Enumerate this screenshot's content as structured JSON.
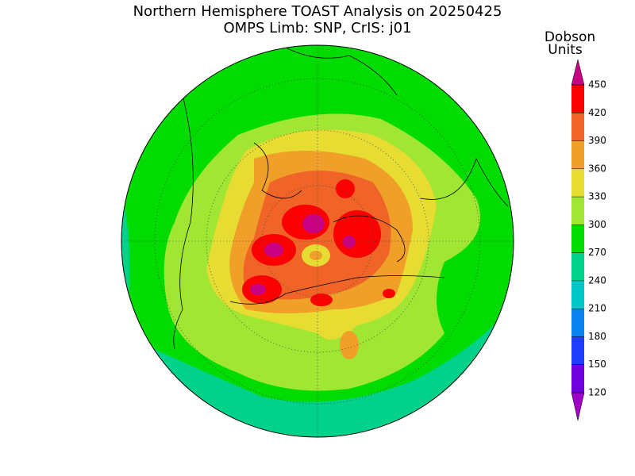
{
  "header": {
    "title": "Northern Hemisphere TOAST Analysis on 20250425",
    "subtitle": "OMPS Limb: SNP, CrIS: j01"
  },
  "colorbar": {
    "label": [
      "Dobson",
      "Units"
    ],
    "ticks": [
      120,
      150,
      180,
      210,
      240,
      270,
      300,
      330,
      360,
      390,
      420,
      450
    ],
    "colors": [
      "#a000c8",
      "#6e00dc",
      "#1e3cff",
      "#0a82f0",
      "#00c8c8",
      "#00d28c",
      "#00dc00",
      "#a0e632",
      "#e6dc32",
      "#f0a028",
      "#f06428",
      "#fa0000",
      "#c80082"
    ]
  }
}
